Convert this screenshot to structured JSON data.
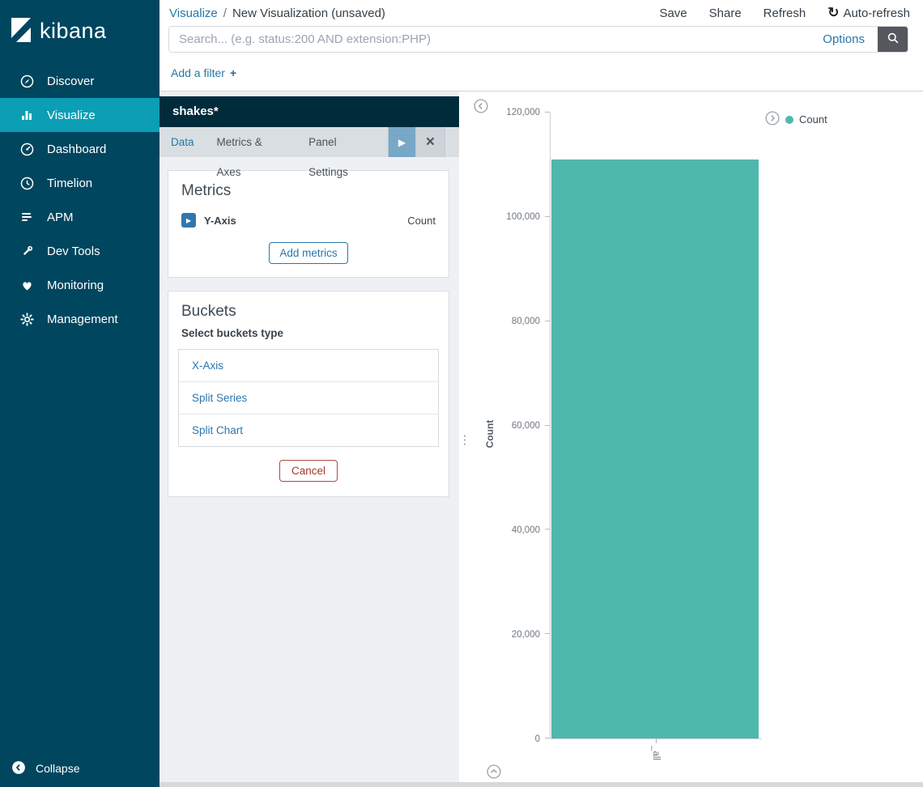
{
  "app": {
    "name": "kibana"
  },
  "sidebar": {
    "items": [
      {
        "label": "Discover",
        "icon": "discover-icon"
      },
      {
        "label": "Visualize",
        "icon": "visualize-icon",
        "active": true
      },
      {
        "label": "Dashboard",
        "icon": "dashboard-icon"
      },
      {
        "label": "Timelion",
        "icon": "timelion-icon"
      },
      {
        "label": "APM",
        "icon": "apm-icon"
      },
      {
        "label": "Dev Tools",
        "icon": "wrench-icon"
      },
      {
        "label": "Monitoring",
        "icon": "heart-icon"
      },
      {
        "label": "Management",
        "icon": "gear-icon"
      }
    ],
    "collapse_label": "Collapse"
  },
  "header": {
    "breadcrumb": {
      "section": "Visualize",
      "separator": "/",
      "page": "New Visualization (unsaved)"
    },
    "actions": [
      "Save",
      "Share",
      "Refresh"
    ],
    "auto_refresh_label": "Auto-refresh"
  },
  "search": {
    "placeholder": "Search... (e.g. status:200 AND extension:PHP)",
    "options_label": "Options"
  },
  "filter_bar": {
    "label": "Add a filter"
  },
  "editor": {
    "index_pattern": "shakes*",
    "tabs": [
      {
        "label": "Data",
        "active": true
      },
      {
        "label": "Metrics & Axes",
        "active": false
      },
      {
        "label": "Panel Settings",
        "active": false
      }
    ],
    "metrics": {
      "title": "Metrics",
      "rows": [
        {
          "label": "Y-Axis",
          "value": "Count"
        }
      ],
      "add_button": "Add metrics"
    },
    "buckets": {
      "title": "Buckets",
      "subtitle": "Select buckets type",
      "options": [
        "X-Axis",
        "Split Series",
        "Split Chart"
      ],
      "cancel_button": "Cancel"
    }
  },
  "icons": {
    "auto_refresh": "↻",
    "plus": "+",
    "play": "▶",
    "close": "×",
    "toggle_expand": "▶",
    "resizer_dots": "⋮"
  },
  "chart_data": {
    "type": "bar",
    "title": "",
    "categories": [
      "_all"
    ],
    "series": [
      {
        "name": "Count",
        "values": [
          111000
        ],
        "color": "#4FB8AC"
      }
    ],
    "xlabel": "",
    "ylabel": "Count",
    "ylim": [
      0,
      120000
    ],
    "yticks": [
      0,
      20000,
      40000,
      60000,
      80000,
      100000,
      120000
    ],
    "ytick_labels": [
      "0",
      "20,000",
      "40,000",
      "60,000",
      "80,000",
      "100,000",
      "120,000"
    ],
    "grid": false,
    "legend": {
      "position": "right",
      "items": [
        {
          "label": "Count",
          "color": "#4FB8AC"
        }
      ]
    }
  }
}
